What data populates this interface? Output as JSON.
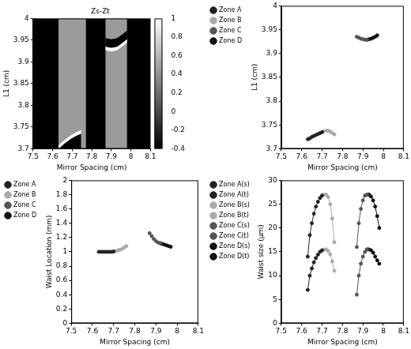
{
  "chart_data": [
    {
      "type": "heatmap",
      "title": "Zs-Zt",
      "x_label": "Mirror Spacing (cm)",
      "y_label": "L1 (cm)",
      "xlim": [
        7.5,
        8.1
      ],
      "xticks": [
        7.5,
        7.6,
        7.7,
        7.8,
        7.9,
        8,
        8.1
      ],
      "ylim": [
        3.7,
        4
      ],
      "yticks": [
        3.7,
        3.75,
        3.8,
        3.85,
        3.9,
        3.95,
        4
      ],
      "grid": false,
      "cells": [
        {
          "value": -0.4,
          "x": [
            7.5,
            8.1,
            8.1,
            7.5
          ],
          "y": [
            3.7,
            3.7,
            4,
            4
          ]
        },
        {
          "value": 0.45,
          "x": [
            7.63,
            7.77,
            7.77,
            7.63
          ],
          "y": [
            3.7,
            3.7,
            4,
            4
          ]
        },
        {
          "value": 0.45,
          "x": [
            7.87,
            7.98,
            7.98,
            7.87
          ],
          "y": [
            3.7,
            3.7,
            4,
            4
          ]
        },
        {
          "value": -0.4,
          "x": [
            7.63,
            7.66,
            7.69,
            7.72,
            7.745,
            7.745
          ],
          "y": [
            3.7,
            3.712,
            3.722,
            3.73,
            3.735,
            3.7
          ]
        },
        {
          "value": 1,
          "x": [
            7.63,
            7.66,
            7.69,
            7.72,
            7.745,
            7.745,
            7.72,
            7.69,
            7.66,
            7.63
          ],
          "y": [
            3.7,
            3.712,
            3.722,
            3.73,
            3.735,
            3.743,
            3.738,
            3.73,
            3.72,
            3.708
          ]
        },
        {
          "value": -0.4,
          "x": [
            7.87,
            7.9,
            7.93,
            7.96,
            7.98,
            7.98,
            7.96,
            7.93,
            7.9,
            7.87
          ],
          "y": [
            3.935,
            3.932,
            3.935,
            3.945,
            3.952,
            3.972,
            3.965,
            3.955,
            3.952,
            3.955
          ]
        },
        {
          "value": 1,
          "x": [
            7.87,
            7.9,
            7.93,
            7.96,
            7.98,
            7.98,
            7.96,
            7.93,
            7.9,
            7.87
          ],
          "y": [
            3.927,
            3.924,
            3.927,
            3.937,
            3.944,
            3.952,
            3.945,
            3.935,
            3.932,
            3.935
          ]
        }
      ],
      "colorbar": {
        "range": [
          -0.4,
          1
        ],
        "ticks": [
          -0.4,
          -0.2,
          0,
          0.2,
          0.4,
          0.6,
          0.8,
          1
        ]
      }
    },
    {
      "type": "line",
      "x_label": "Mirror Spacing (cm)",
      "y_label": "L1 (cm)",
      "xlim": [
        7.5,
        8.1
      ],
      "xticks": [
        7.5,
        7.6,
        7.7,
        7.8,
        7.9,
        8,
        8.1
      ],
      "ylim": [
        3.7,
        4
      ],
      "yticks": [
        3.7,
        3.75,
        3.8,
        3.85,
        3.9,
        3.95,
        4
      ],
      "grid": false,
      "legend": "upper left",
      "marker": "circle",
      "line_style": "solid",
      "series": [
        {
          "name": "Zone A",
          "color": "#222222",
          "x": [
            7.63,
            7.64,
            7.65,
            7.66,
            7.67,
            7.68,
            7.69,
            7.7
          ],
          "values": [
            3.72,
            3.722,
            3.725,
            3.727,
            3.729,
            3.731,
            3.733,
            3.735
          ]
        },
        {
          "name": "Zone B",
          "color": "#aaaaaa",
          "x": [
            7.7,
            7.71,
            7.72,
            7.73,
            7.74,
            7.75,
            7.76
          ],
          "values": [
            3.735,
            3.737,
            3.738,
            3.738,
            3.736,
            3.733,
            3.73
          ]
        },
        {
          "name": "Zone C",
          "color": "#555555",
          "x": [
            7.87,
            7.88,
            7.89,
            7.9,
            7.91,
            7.92
          ],
          "values": [
            3.935,
            3.933,
            3.931,
            3.93,
            3.929,
            3.929
          ]
        },
        {
          "name": "Zone D",
          "color": "#111111",
          "x": [
            7.92,
            7.93,
            7.94,
            7.95,
            7.96,
            7.97
          ],
          "values": [
            3.929,
            3.93,
            3.931,
            3.933,
            3.935,
            3.938
          ]
        }
      ]
    },
    {
      "type": "line",
      "x_label": "Mirror Spacing (cm)",
      "y_label": "Waist Location (mm)",
      "xlim": [
        7.5,
        8.1
      ],
      "xticks": [
        7.5,
        7.6,
        7.7,
        7.8,
        7.9,
        8,
        8.1
      ],
      "ylim": [
        0,
        2
      ],
      "yticks": [
        0,
        0.2,
        0.4,
        0.6,
        0.8,
        1,
        1.2,
        1.4,
        1.6,
        1.8,
        2
      ],
      "grid": false,
      "legend": "upper left",
      "marker": "circle",
      "line_style": "solid",
      "series": [
        {
          "name": "Zone A",
          "color": "#222222",
          "x": [
            7.63,
            7.64,
            7.65,
            7.66,
            7.67,
            7.68,
            7.69,
            7.7
          ],
          "values": [
            1,
            1,
            1,
            1,
            1,
            1,
            1,
            1.005
          ]
        },
        {
          "name": "Zone B",
          "color": "#aaaaaa",
          "x": [
            7.7,
            7.71,
            7.72,
            7.73,
            7.74,
            7.75,
            7.76
          ],
          "values": [
            1.005,
            1.01,
            1.02,
            1.03,
            1.04,
            1.06,
            1.08
          ]
        },
        {
          "name": "Zone C",
          "color": "#555555",
          "x": [
            7.87,
            7.88,
            7.89,
            7.9,
            7.91,
            7.92
          ],
          "values": [
            1.26,
            1.22,
            1.18,
            1.15,
            1.13,
            1.12
          ]
        },
        {
          "name": "Zone D",
          "color": "#111111",
          "x": [
            7.92,
            7.93,
            7.94,
            7.95,
            7.96,
            7.97
          ],
          "values": [
            1.12,
            1.11,
            1.1,
            1.09,
            1.08,
            1.07
          ]
        }
      ]
    },
    {
      "type": "line",
      "x_label": "Mirror Spacing (cm)",
      "y_label": "Waist size (µm)",
      "xlim": [
        7.5,
        8.1
      ],
      "xticks": [
        7.5,
        7.6,
        7.7,
        7.8,
        7.9,
        8,
        8.1
      ],
      "ylim": [
        0,
        30
      ],
      "yticks": [
        0,
        5,
        10,
        15,
        20,
        25,
        30
      ],
      "grid": false,
      "legend": "upper left",
      "marker": "circle",
      "line_style": "solid",
      "series": [
        {
          "name": "Zone A(s)",
          "color": "#222222",
          "x": [
            7.63,
            7.64,
            7.65,
            7.66,
            7.67,
            7.68,
            7.69,
            7.7
          ],
          "values": [
            14,
            18.5,
            21,
            23,
            24.5,
            25.5,
            26.3,
            26.8
          ]
        },
        {
          "name": "Zone A(t)",
          "color": "#222222",
          "x": [
            7.63,
            7.64,
            7.65,
            7.66,
            7.67,
            7.68,
            7.69,
            7.7
          ],
          "values": [
            7,
            10,
            11.5,
            12.8,
            13.7,
            14.4,
            15,
            15.3
          ]
        },
        {
          "name": "Zone B(s)",
          "color": "#aaaaaa",
          "x": [
            7.7,
            7.71,
            7.72,
            7.73,
            7.74,
            7.75,
            7.76
          ],
          "values": [
            26.8,
            27,
            27,
            26.5,
            25,
            22,
            17
          ]
        },
        {
          "name": "Zone B(t)",
          "color": "#aaaaaa",
          "x": [
            7.7,
            7.71,
            7.72,
            7.73,
            7.74,
            7.75,
            7.76
          ],
          "values": [
            15.3,
            15.5,
            15.5,
            15.2,
            14.5,
            13,
            11
          ]
        },
        {
          "name": "Zone C(s)",
          "color": "#555555",
          "x": [
            7.87,
            7.88,
            7.89,
            7.9,
            7.91,
            7.92
          ],
          "values": [
            16,
            21,
            24,
            25.8,
            26.8,
            27
          ]
        },
        {
          "name": "Zone C(t)",
          "color": "#555555",
          "x": [
            7.87,
            7.88,
            7.89,
            7.9,
            7.91,
            7.92
          ],
          "values": [
            6,
            10,
            12.5,
            14,
            15,
            15.5
          ]
        },
        {
          "name": "Zone D(s)",
          "color": "#111111",
          "x": [
            7.92,
            7.93,
            7.94,
            7.95,
            7.96,
            7.97,
            7.98
          ],
          "values": [
            27,
            27,
            26.6,
            25.8,
            24.5,
            22.5,
            20
          ]
        },
        {
          "name": "Zone D(t)",
          "color": "#111111",
          "x": [
            7.92,
            7.93,
            7.94,
            7.95,
            7.96,
            7.97,
            7.98
          ],
          "values": [
            15.5,
            15.5,
            15.3,
            14.8,
            14,
            13.2,
            12.5
          ]
        }
      ]
    }
  ]
}
